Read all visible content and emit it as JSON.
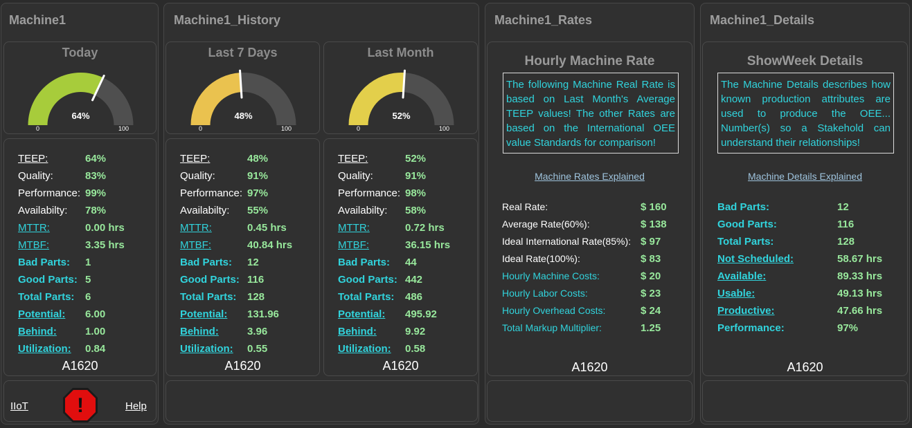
{
  "groups": {
    "machine1": {
      "title": "Machine1"
    },
    "history": {
      "title": "Machine1_History"
    },
    "rates": {
      "title": "Machine1_Rates"
    },
    "details": {
      "title": "Machine1_Details"
    }
  },
  "gauges": [
    {
      "title": "Today",
      "value": 64,
      "label": "64%",
      "min": "0",
      "max": "100",
      "color": "#a7cc3b"
    },
    {
      "title": "Last 7 Days",
      "value": 48,
      "label": "48%",
      "min": "0",
      "max": "100",
      "color": "#eac24f"
    },
    {
      "title": "Last Month",
      "value": 52,
      "label": "52%",
      "min": "0",
      "max": "100",
      "color": "#e3cf4b"
    }
  ],
  "stat_labels": {
    "teep": "TEEP:",
    "quality": "Quality:",
    "performance": "Performance:",
    "availability": "Availabilty:",
    "mttr": "MTTR:",
    "mtbf": "MTBF:",
    "bad_parts": "Bad Parts:",
    "good_parts": "Good Parts:",
    "total_parts": "Total Parts:",
    "potential": "Potential:",
    "behind": "Behind:",
    "utilization": "Utilization:"
  },
  "stats": [
    {
      "teep": "64%",
      "quality": "83%",
      "performance": "99%",
      "availability": "78%",
      "mttr": "0.00 hrs",
      "mtbf": "3.35 hrs",
      "bad_parts": "1",
      "good_parts": "5",
      "total_parts": "6",
      "potential": "6.00",
      "behind": "1.00",
      "utilization": "0.84",
      "machine": "A1620"
    },
    {
      "teep": "48%",
      "quality": "91%",
      "performance": "97%",
      "availability": "55%",
      "mttr": "0.45 hrs",
      "mtbf": "40.84 hrs",
      "bad_parts": "12",
      "good_parts": "116",
      "total_parts": "128",
      "potential": "131.96",
      "behind": "3.96",
      "utilization": "0.55",
      "machine": "A1620"
    },
    {
      "teep": "52%",
      "quality": "91%",
      "performance": "98%",
      "availability": "58%",
      "mttr": "0.72 hrs",
      "mtbf": "36.15 hrs",
      "bad_parts": "44",
      "good_parts": "442",
      "total_parts": "486",
      "potential": "495.92",
      "behind": "9.92",
      "utilization": "0.58",
      "machine": "A1620"
    }
  ],
  "footer": {
    "iiot_label": "IIoT",
    "help_label": "Help",
    "alert_icon": "stop-alert-icon",
    "alert_symbol": "!"
  },
  "rates": {
    "title": "Hourly Machine Rate",
    "description": "The following Machine Real Rate is based on Last Month's Average TEEP values! The other Rates are based on the International OEE value Standards for comparison!",
    "explained_link": "Machine Rates Explained",
    "rows": [
      {
        "label": "Real Rate:",
        "value": "$ 160",
        "style": "white"
      },
      {
        "label": "Average Rate(60%):",
        "value": "$ 138",
        "style": "white"
      },
      {
        "label": "Ideal International Rate(85%):",
        "value": "$ 97",
        "style": "white"
      },
      {
        "label": "Ideal Rate(100%):",
        "value": "$ 83",
        "style": "white"
      },
      {
        "label": "Hourly Machine Costs:",
        "value": "$ 20",
        "style": "cyan"
      },
      {
        "label": "Hourly Labor Costs:",
        "value": "$ 23",
        "style": "cyan"
      },
      {
        "label": "Hourly Overhead Costs:",
        "value": "$ 24",
        "style": "cyan"
      },
      {
        "label": "Total Markup Multiplier:",
        "value": "1.25",
        "style": "cyan"
      }
    ],
    "machine": "A1620"
  },
  "details": {
    "title": "ShowWeek Details",
    "description": "The Machine Details describes how known production attributes are used to produce the OEE... Number(s) so a Stakehold can understand their relationships!",
    "explained_link": "Machine Details Explained",
    "rows": [
      {
        "label": "Bad Parts:",
        "value": "12",
        "link": false
      },
      {
        "label": "Good Parts:",
        "value": "116",
        "link": false
      },
      {
        "label": "Total Parts:",
        "value": "128",
        "link": false
      },
      {
        "label": "Not Scheduled:",
        "value": "58.67 hrs",
        "link": true
      },
      {
        "label": "Available:",
        "value": "89.33 hrs",
        "link": true
      },
      {
        "label": "Usable:",
        "value": "49.13 hrs",
        "link": true
      },
      {
        "label": "Productive:",
        "value": "47.66 hrs",
        "link": true
      },
      {
        "label": "Performance:",
        "value": "97%",
        "link": false
      }
    ],
    "machine": "A1620"
  }
}
